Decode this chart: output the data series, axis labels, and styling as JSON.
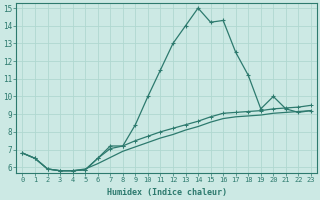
{
  "xlabel": "Humidex (Indice chaleur)",
  "ylabel": "",
  "bg_color": "#cce9e4",
  "grid_color": "#b0d8d0",
  "line_color": "#2d7a6e",
  "xlim": [
    -0.5,
    23.5
  ],
  "ylim": [
    5.7,
    15.3
  ],
  "xticks": [
    0,
    1,
    2,
    3,
    4,
    5,
    6,
    7,
    8,
    9,
    10,
    11,
    12,
    13,
    14,
    15,
    16,
    17,
    18,
    19,
    20,
    21,
    22,
    23
  ],
  "yticks": [
    6,
    7,
    8,
    9,
    10,
    11,
    12,
    13,
    14,
    15
  ],
  "line1_x": [
    0,
    1,
    2,
    3,
    4,
    5,
    6,
    7,
    8,
    9,
    10,
    11,
    12,
    13,
    14,
    15,
    16,
    17,
    18,
    19,
    20,
    21,
    22,
    23
  ],
  "line1_y": [
    6.8,
    6.5,
    5.9,
    5.8,
    5.8,
    5.85,
    6.5,
    7.2,
    7.2,
    8.4,
    10.0,
    11.5,
    13.0,
    14.0,
    15.0,
    14.2,
    14.3,
    12.5,
    11.2,
    9.3,
    10.0,
    9.3,
    9.1,
    9.2
  ],
  "line2_x": [
    0,
    1,
    2,
    3,
    4,
    5,
    6,
    7,
    8,
    9,
    10,
    11,
    12,
    13,
    14,
    15,
    16,
    17,
    18,
    19,
    20,
    21,
    22,
    23
  ],
  "line2_y": [
    6.8,
    6.5,
    5.9,
    5.8,
    5.8,
    5.85,
    6.5,
    7.05,
    7.2,
    7.5,
    7.75,
    8.0,
    8.2,
    8.4,
    8.6,
    8.85,
    9.05,
    9.1,
    9.15,
    9.2,
    9.3,
    9.35,
    9.4,
    9.5
  ],
  "line3_x": [
    0,
    1,
    2,
    3,
    4,
    5,
    6,
    7,
    8,
    9,
    10,
    11,
    12,
    13,
    14,
    15,
    16,
    17,
    18,
    19,
    20,
    21,
    22,
    23
  ],
  "line3_y": [
    6.8,
    6.5,
    5.9,
    5.8,
    5.8,
    5.9,
    6.2,
    6.55,
    6.9,
    7.15,
    7.4,
    7.65,
    7.85,
    8.1,
    8.3,
    8.55,
    8.75,
    8.85,
    8.9,
    8.95,
    9.05,
    9.1,
    9.15,
    9.2
  ]
}
